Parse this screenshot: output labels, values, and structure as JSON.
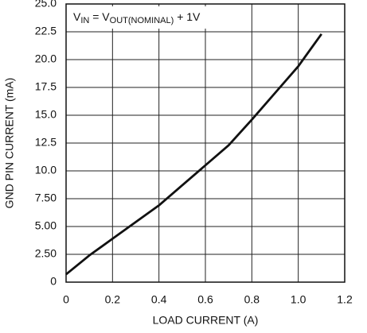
{
  "chart_data": {
    "type": "line",
    "annotation": [
      "V",
      "IN",
      " = V",
      "OUT(NOMINAL)",
      " + 1V"
    ],
    "x_label": "LOAD CURRENT (A)",
    "y_label": "GND PIN CURRENT (mA)",
    "xlim": [
      0,
      1.2
    ],
    "xticks": [
      0,
      0.2,
      0.4,
      0.6,
      0.8,
      {
        "value": 1.0,
        "label": "1.0"
      },
      1.2
    ],
    "ylim": [
      0,
      25
    ],
    "yticks": [
      0,
      {
        "value": 2.5,
        "label": "2.50"
      },
      {
        "value": 5,
        "label": "5.00"
      },
      {
        "value": 7.5,
        "label": "7.50"
      },
      {
        "value": 10,
        "label": "10.0"
      },
      12.5,
      {
        "value": 15,
        "label": "15.0"
      },
      17.5,
      {
        "value": 20,
        "label": "20.0"
      },
      22.5,
      {
        "value": 25,
        "label": "25.0"
      }
    ],
    "grid": true,
    "series": [
      {
        "color": "#111111",
        "x": [
          0,
          0.1,
          0.2,
          0.3,
          0.4,
          0.5,
          0.6,
          0.7,
          0.8,
          0.9,
          1.0,
          1.1
        ],
        "values": [
          0.7,
          2.4,
          3.9,
          5.4,
          6.9,
          8.7,
          10.5,
          12.3,
          14.6,
          17.0,
          19.4,
          22.3
        ]
      }
    ]
  }
}
